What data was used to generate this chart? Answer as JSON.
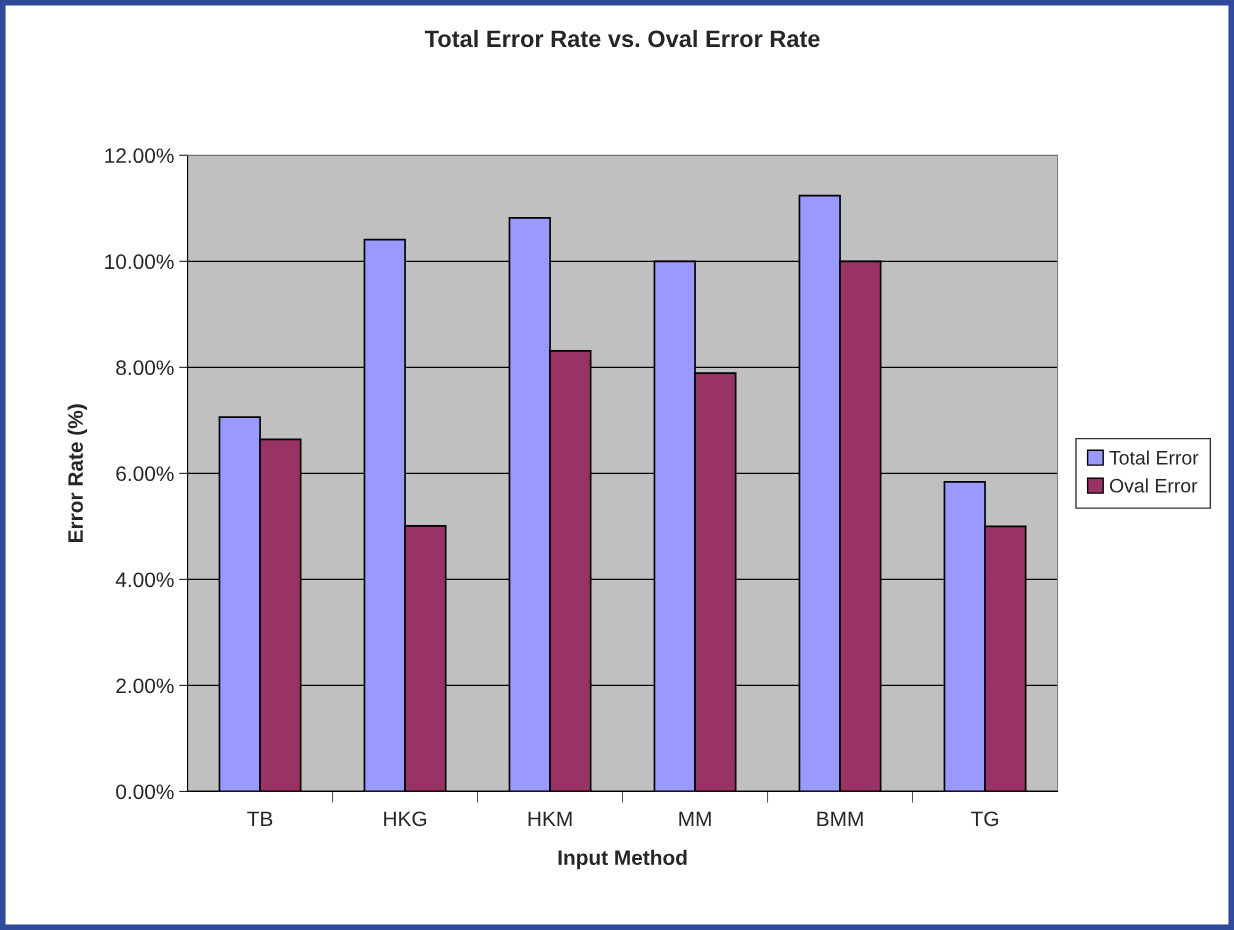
{
  "chart_data": {
    "type": "bar",
    "title": "Total Error Rate vs. Oval Error Rate",
    "xlabel": "Input Method",
    "ylabel": "Error Rate (%)",
    "categories": [
      "TB",
      "HKG",
      "HKM",
      "MM",
      "BMM",
      "TG"
    ],
    "series": [
      {
        "name": "Total Error",
        "color": "#9999ff",
        "values": [
          7.06,
          10.41,
          10.82,
          10.0,
          11.24,
          5.84
        ]
      },
      {
        "name": "Oval Error",
        "color": "#993366",
        "values": [
          6.64,
          5.01,
          8.31,
          7.89,
          10.0,
          5.0
        ]
      }
    ],
    "ylim": [
      0,
      12
    ],
    "yticks": [
      {
        "value": 0,
        "label": "0.00%"
      },
      {
        "value": 2,
        "label": "2.00%"
      },
      {
        "value": 4,
        "label": "4.00%"
      },
      {
        "value": 6,
        "label": "6.00%"
      },
      {
        "value": 8,
        "label": "8.00%"
      },
      {
        "value": 10,
        "label": "10.00%"
      },
      {
        "value": 12,
        "label": "12.00%"
      }
    ],
    "grid": "y",
    "legend": "right"
  }
}
